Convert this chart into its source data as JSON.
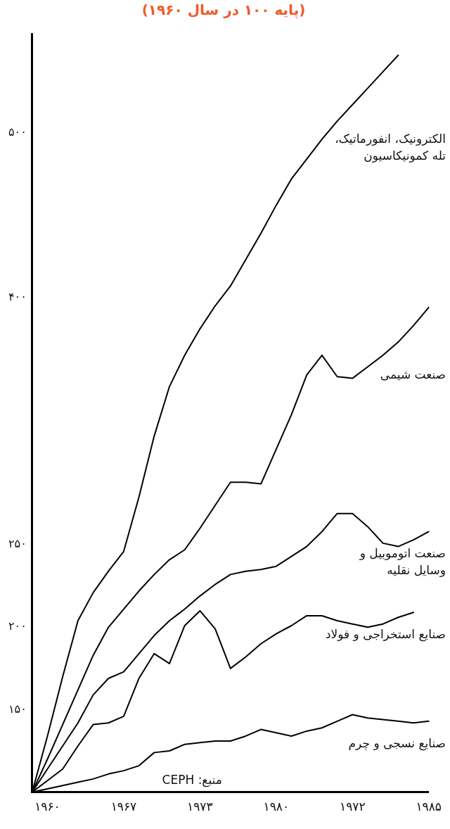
{
  "chart_data": {
    "type": "line",
    "title": "(پایه ۱۰۰ در سال ۱۹۶۰)",
    "categories": [
      null,
      "۱۹۶۰",
      null,
      null,
      null,
      null,
      "۱۹۶۷",
      null,
      null,
      null,
      null,
      "۱۹۷۳",
      null,
      null,
      null,
      null,
      "۱۹۸۰",
      null,
      null,
      null,
      null,
      "۱۹۷۲",
      null,
      null,
      null,
      null,
      "۱۹۸۵"
    ],
    "series": [
      {
        "name": "الکترونیک، انفورماتیک،\nتله کمونیکاسیون",
        "color": "#000000",
        "values": [
          100,
          134,
          170,
          204,
          221,
          234,
          246,
          279,
          316,
          346,
          365,
          381,
          395,
          407,
          423,
          439,
          456,
          472,
          484,
          496,
          507,
          517,
          527,
          537,
          547,
          null,
          null
        ]
      },
      {
        "name": "صنعت شیمی",
        "color": "#000000",
        "values": [
          100,
          120,
          141,
          162,
          183,
          200,
          211,
          222,
          232,
          241,
          247,
          260,
          274,
          288,
          288,
          287,
          308,
          329,
          353,
          365,
          352,
          351,
          358,
          365,
          373,
          383,
          394
        ]
      },
      {
        "name": "صنعت اتوموبیل و\nوسایل نقلیه",
        "color": "#000000",
        "values": [
          100,
          114,
          128,
          142,
          159,
          169,
          173,
          184,
          195,
          204,
          211,
          219,
          226,
          232,
          234,
          235,
          237,
          243,
          249,
          258,
          269,
          269,
          261,
          251,
          249,
          253,
          258
        ]
      },
      {
        "name": "صنایع استخراجی و فولاد",
        "color": "#000000",
        "values": [
          100,
          107,
          114,
          128,
          141,
          142,
          146,
          169,
          184,
          178,
          201,
          210,
          199,
          175,
          182,
          190,
          196,
          201,
          207,
          207,
          204,
          202,
          200,
          202,
          206,
          209,
          null
        ]
      },
      {
        "name": "صنایع نسجی و چرم",
        "color": "#000000",
        "values": [
          100,
          102,
          104,
          106,
          108,
          111,
          113,
          116,
          124,
          125,
          129,
          130,
          131,
          131,
          134,
          138,
          136,
          134,
          137,
          139,
          143,
          147,
          145,
          144,
          143,
          142,
          143
        ]
      }
    ],
    "ylim": [
      100,
      560
    ],
    "yticks": [
      {
        "value": 150,
        "label": "۱۵۰"
      },
      {
        "value": 200,
        "label": "۲۰۰"
      },
      {
        "value": 250,
        "label": "۲۵۰"
      },
      {
        "value": 400,
        "label": "۴۰۰"
      },
      {
        "value": 500,
        "label": "۵۰۰"
      }
    ],
    "annotations": [
      "منبع: CEPH"
    ],
    "legend": false,
    "grid": false,
    "marker": "none",
    "line_style": "solid"
  }
}
